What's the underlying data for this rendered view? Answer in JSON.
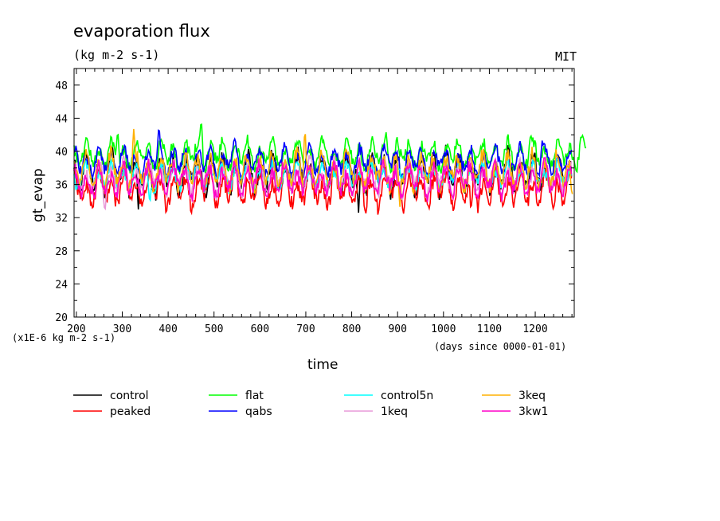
{
  "chart_data": {
    "type": "line",
    "title": "evaporation flux",
    "subtitle": "(kg m-2 s-1)",
    "source_label": "MIT",
    "xlabel": "time",
    "x_units": "(days since 0000-01-01)",
    "ylabel": "gt_evap",
    "y_scale_note": "(x1E-6 kg m-2 s-1)",
    "xlim": [
      195,
      1285
    ],
    "ylim": [
      20,
      50
    ],
    "x_ticks": [
      "200",
      "300",
      "400",
      "500",
      "600",
      "700",
      "800",
      "900",
      "1000",
      "1100",
      "1200"
    ],
    "y_ticks": [
      "20",
      "24",
      "28",
      "32",
      "36",
      "40",
      "44",
      "48"
    ],
    "legend_placement": "bottom",
    "series": [
      {
        "name": "control",
        "color": "#000000",
        "x_end": 1280,
        "mean": 37.3,
        "amp": 1.9,
        "spikes": [
          [
            335,
            33.0
          ],
          [
            815,
            32.6
          ],
          [
            1005,
            40.8
          ]
        ]
      },
      {
        "name": "peaked",
        "color": "#ff0000",
        "x_end": 1280,
        "mean": 35.4,
        "amp": 1.7,
        "spikes": [
          [
            830,
            32.2
          ],
          [
            1060,
            32.4
          ],
          [
            1240,
            33.0
          ]
        ]
      },
      {
        "name": "flat",
        "color": "#00ff00",
        "x_end": 1312,
        "mean": 39.6,
        "amp": 1.4,
        "spikes": [
          [
            290,
            42.8
          ],
          [
            472,
            44.2
          ],
          [
            875,
            42.3
          ],
          [
            1190,
            42.0
          ],
          [
            1300,
            41.9
          ]
        ]
      },
      {
        "name": "qabs",
        "color": "#0000ff",
        "x_end": 1280,
        "mean": 38.7,
        "amp": 1.4,
        "spikes": [
          [
            380,
            43.2
          ],
          [
            545,
            41.5
          ],
          [
            1215,
            41.3
          ]
        ]
      },
      {
        "name": "control5n",
        "color": "#00ffff",
        "x_end": 1280,
        "mean": 37.0,
        "amp": 1.2,
        "spikes": [
          [
            200,
            35.0
          ],
          [
            360,
            33.5
          ]
        ]
      },
      {
        "name": "1keq",
        "color": "#e89ad8",
        "x_end": 1280,
        "mean": 36.8,
        "amp": 1.5,
        "spikes": [
          [
            262,
            32.6
          ],
          [
            710,
            39.5
          ]
        ]
      },
      {
        "name": "3keq",
        "color": "#ffb000",
        "x_end": 1282,
        "mean": 37.6,
        "amp": 1.7,
        "spikes": [
          [
            325,
            42.7
          ],
          [
            698,
            43.3
          ],
          [
            905,
            33.3
          ],
          [
            1280,
            34.5
          ]
        ]
      },
      {
        "name": "3kw1",
        "color": "#ff00c8",
        "x_end": 1280,
        "mean": 36.5,
        "amp": 1.6,
        "spikes": [
          [
            240,
            34.0
          ],
          [
            990,
            35.0
          ]
        ]
      }
    ]
  }
}
